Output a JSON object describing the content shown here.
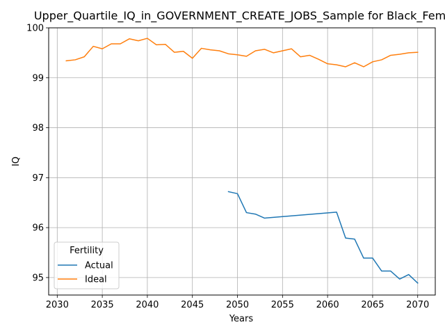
{
  "chart_data": {
    "type": "line",
    "title": "Upper_Quartile_IQ_in_GOVERNMENT_CREATE_JOBS_Sample for Black_Fem",
    "xlabel": "Years",
    "ylabel": "IQ",
    "xlim": [
      2029.05,
      2071.95
    ],
    "ylim": [
      94.65,
      100.0
    ],
    "xticks": [
      2030,
      2035,
      2040,
      2045,
      2050,
      2055,
      2060,
      2065,
      2070
    ],
    "yticks": [
      95,
      96,
      97,
      98,
      99,
      100
    ],
    "grid": true,
    "legend": {
      "title": "Fertility",
      "placement": "lower-left"
    },
    "series": [
      {
        "name": "Actual",
        "color": "#1f77b4",
        "x": [
          2049,
          2050,
          2051,
          2052,
          2053,
          2061,
          2062,
          2063,
          2064,
          2065,
          2066,
          2067,
          2068,
          2069,
          2070
        ],
        "y": [
          96.72,
          96.68,
          96.3,
          96.27,
          96.19,
          96.31,
          95.79,
          95.77,
          95.39,
          95.39,
          95.13,
          95.13,
          94.97,
          95.06,
          94.89
        ]
      },
      {
        "name": "Ideal",
        "color": "#ff7f0e",
        "x": [
          2031,
          2032,
          2033,
          2034,
          2035,
          2036,
          2037,
          2038,
          2039,
          2040,
          2041,
          2042,
          2043,
          2044,
          2045,
          2046,
          2047,
          2048,
          2049,
          2050,
          2051,
          2052,
          2053,
          2054,
          2055,
          2056,
          2057,
          2058,
          2059,
          2060,
          2061,
          2062,
          2063,
          2064,
          2065,
          2066,
          2067,
          2068,
          2069,
          2070
        ],
        "y": [
          99.34,
          99.36,
          99.42,
          99.63,
          99.58,
          99.68,
          99.68,
          99.78,
          99.74,
          99.79,
          99.66,
          99.67,
          99.51,
          99.53,
          99.39,
          99.59,
          99.56,
          99.54,
          99.48,
          99.46,
          99.43,
          99.54,
          99.57,
          99.5,
          99.54,
          99.58,
          99.42,
          99.45,
          99.37,
          99.28,
          99.26,
          99.22,
          99.3,
          99.22,
          99.32,
          99.36,
          99.45,
          99.47,
          99.5,
          99.51
        ]
      }
    ]
  }
}
